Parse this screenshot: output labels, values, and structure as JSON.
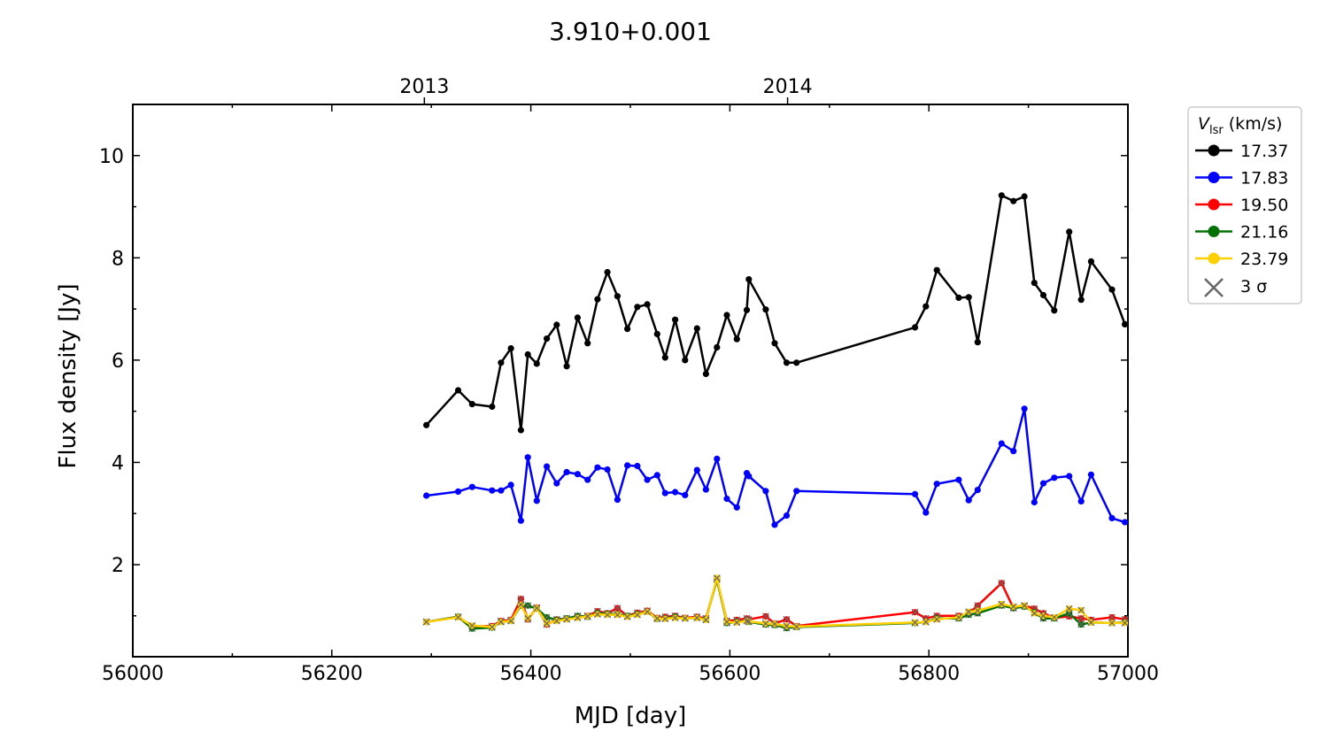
{
  "chart_data": {
    "type": "line",
    "title": "3.910+0.001",
    "xlabel": "MJD [day]",
    "ylabel": "Flux density [Jy]",
    "xlim": [
      56000,
      57000
    ],
    "ylim": [
      0.2,
      11.0
    ],
    "x_ticks": [
      "56000",
      "56200",
      "56400",
      "56600",
      "56800",
      "57000"
    ],
    "y_ticks": [
      "2",
      "4",
      "6",
      "8",
      "10"
    ],
    "top_axis_ticks": [
      {
        "label": "2013",
        "mjd": 56293
      },
      {
        "label": "2014",
        "mjd": 56658
      }
    ],
    "grid": false,
    "legend": {
      "placement": "outside-right",
      "title_main": "V",
      "title_sub": "lsr",
      "title_unit": " (km/s)",
      "sigma_label": "3 σ",
      "sigma_color": "#666666"
    },
    "series": [
      {
        "name": "17.37",
        "color": "#000000",
        "x": [
          56295,
          56327,
          56341,
          56361,
          56370,
          56380,
          56390,
          56397,
          56406,
          56416,
          56426,
          56436,
          56447,
          56457,
          56467,
          56477,
          56487,
          56497,
          56507,
          56517,
          56527,
          56535,
          56545,
          56555,
          56567,
          56576,
          56587,
          56597,
          56607,
          56617,
          56619,
          56636,
          56645,
          56657,
          56667,
          56786,
          56797,
          56808,
          56830,
          56840,
          56849,
          56873,
          56885,
          56896,
          56906,
          56915,
          56926,
          56941,
          56953,
          56963,
          56984,
          56997
        ],
        "y": [
          4.73,
          5.41,
          5.14,
          5.09,
          5.95,
          6.23,
          4.63,
          6.11,
          5.93,
          6.42,
          6.69,
          5.88,
          6.83,
          6.33,
          7.19,
          7.72,
          7.25,
          6.61,
          7.04,
          7.09,
          6.51,
          6.05,
          6.79,
          6.0,
          6.62,
          5.73,
          6.25,
          6.88,
          6.41,
          6.98,
          7.58,
          6.99,
          6.33,
          5.95,
          5.95,
          6.64,
          7.05,
          7.76,
          7.22,
          7.23,
          6.35,
          9.22,
          9.11,
          9.2,
          7.51,
          7.27,
          6.97,
          8.51,
          7.18,
          7.93,
          7.38,
          6.7
        ]
      },
      {
        "name": "17.83",
        "color": "#0000ff",
        "x": [
          56295,
          56327,
          56341,
          56361,
          56370,
          56380,
          56390,
          56397,
          56406,
          56416,
          56426,
          56436,
          56447,
          56457,
          56467,
          56477,
          56487,
          56497,
          56507,
          56517,
          56527,
          56535,
          56545,
          56555,
          56567,
          56576,
          56587,
          56597,
          56607,
          56617,
          56619,
          56636,
          56645,
          56657,
          56667,
          56786,
          56797,
          56808,
          56830,
          56840,
          56849,
          56873,
          56885,
          56896,
          56906,
          56915,
          56926,
          56941,
          56953,
          56963,
          56984,
          56997
        ],
        "y": [
          3.35,
          3.43,
          3.52,
          3.45,
          3.45,
          3.56,
          2.86,
          4.1,
          3.25,
          3.92,
          3.59,
          3.81,
          3.77,
          3.66,
          3.9,
          3.86,
          3.27,
          3.94,
          3.93,
          3.66,
          3.75,
          3.4,
          3.42,
          3.36,
          3.85,
          3.47,
          4.07,
          3.29,
          3.12,
          3.79,
          3.73,
          3.44,
          2.78,
          2.96,
          3.44,
          3.38,
          3.02,
          3.58,
          3.66,
          3.26,
          3.46,
          4.37,
          4.22,
          5.05,
          3.22,
          3.59,
          3.7,
          3.73,
          3.24,
          3.76,
          2.91,
          2.83
        ]
      },
      {
        "name": "19.50",
        "color": "#ff0000",
        "x": [
          56295,
          56327,
          56341,
          56361,
          56370,
          56380,
          56390,
          56397,
          56406,
          56416,
          56426,
          56436,
          56447,
          56457,
          56467,
          56477,
          56487,
          56497,
          56507,
          56517,
          56527,
          56535,
          56545,
          56555,
          56567,
          56576,
          56587,
          56597,
          56607,
          56617,
          56619,
          56636,
          56645,
          56657,
          56667,
          56786,
          56797,
          56808,
          56830,
          56840,
          56849,
          56873,
          56885,
          56896,
          56906,
          56915,
          56926,
          56941,
          56953,
          56963,
          56984,
          56997
        ],
        "y": [
          0.88,
          0.98,
          0.79,
          0.8,
          0.9,
          0.92,
          1.33,
          0.93,
          1.16,
          0.83,
          0.93,
          0.95,
          0.98,
          1.0,
          1.09,
          1.05,
          1.15,
          1.0,
          1.06,
          1.1,
          0.96,
          0.98,
          1.0,
          0.96,
          0.98,
          0.95,
          1.71,
          0.9,
          0.92,
          0.95,
          0.93,
          0.99,
          0.85,
          0.93,
          0.8,
          1.07,
          0.95,
          1.0,
          1.0,
          1.05,
          1.2,
          1.64,
          1.15,
          1.2,
          1.14,
          1.05,
          0.96,
          0.99,
          0.95,
          0.92,
          0.97,
          0.93
        ]
      },
      {
        "name": "21.16",
        "color": "#007000",
        "x": [
          56295,
          56327,
          56341,
          56361,
          56370,
          56380,
          56390,
          56397,
          56406,
          56416,
          56426,
          56436,
          56447,
          56457,
          56467,
          56477,
          56487,
          56497,
          56507,
          56517,
          56527,
          56535,
          56545,
          56555,
          56567,
          56576,
          56587,
          56597,
          56607,
          56617,
          56619,
          56636,
          56645,
          56657,
          56667,
          56786,
          56797,
          56808,
          56830,
          56840,
          56849,
          56873,
          56885,
          56896,
          56906,
          56915,
          56926,
          56941,
          56953,
          56963,
          56984,
          56997
        ],
        "y": [
          0.88,
          0.98,
          0.75,
          0.77,
          0.88,
          0.9,
          1.2,
          1.2,
          1.14,
          0.97,
          0.92,
          0.95,
          1.0,
          0.98,
          1.05,
          1.04,
          1.03,
          1.0,
          1.03,
          1.08,
          0.94,
          0.95,
          0.98,
          0.95,
          0.96,
          0.93,
          1.71,
          0.86,
          0.88,
          0.9,
          0.88,
          0.83,
          0.82,
          0.76,
          0.78,
          0.86,
          0.88,
          0.95,
          0.95,
          1.02,
          1.05,
          1.2,
          1.15,
          1.18,
          1.07,
          0.95,
          0.95,
          1.05,
          0.83,
          0.87,
          0.86,
          0.87
        ]
      },
      {
        "name": "23.79",
        "color": "#ffd000",
        "x": [
          56295,
          56327,
          56341,
          56361,
          56370,
          56380,
          56390,
          56397,
          56406,
          56416,
          56426,
          56436,
          56447,
          56457,
          56467,
          56477,
          56487,
          56497,
          56507,
          56517,
          56527,
          56535,
          56545,
          56555,
          56567,
          56576,
          56587,
          56597,
          56607,
          56617,
          56619,
          56636,
          56645,
          56657,
          56667,
          56786,
          56797,
          56808,
          56830,
          56840,
          56849,
          56873,
          56885,
          56896,
          56906,
          56915,
          56926,
          56941,
          56953,
          56963,
          56984,
          56997
        ],
        "y": [
          0.88,
          0.97,
          0.81,
          0.78,
          0.88,
          0.9,
          1.22,
          0.95,
          1.15,
          0.85,
          0.9,
          0.93,
          0.96,
          0.99,
          1.03,
          1.02,
          1.02,
          0.98,
          1.02,
          1.08,
          0.95,
          0.94,
          0.96,
          0.95,
          0.96,
          0.92,
          1.74,
          0.88,
          0.87,
          0.9,
          0.89,
          0.85,
          0.84,
          0.8,
          0.79,
          0.87,
          0.88,
          0.93,
          0.97,
          1.08,
          1.1,
          1.23,
          1.18,
          1.2,
          1.05,
          1.0,
          0.97,
          1.14,
          1.11,
          0.87,
          0.86,
          0.86
        ]
      }
    ]
  }
}
